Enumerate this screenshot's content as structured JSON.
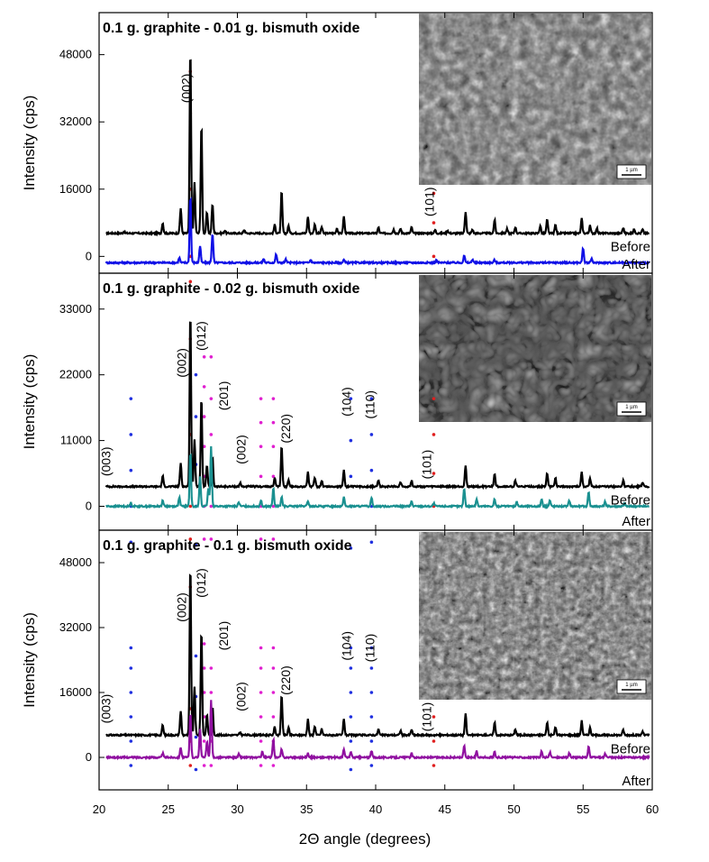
{
  "figure": {
    "xlabel": "2Θ angle (degrees)",
    "x_ticks": [
      "20",
      "25",
      "30",
      "35",
      "40",
      "45",
      "50",
      "55",
      "60"
    ],
    "sem_scale_label": "1 µm",
    "colors": {
      "before": "#000000",
      "after_1": "#1010e6",
      "after_2": "#1a9090",
      "after_3": "#9010a0",
      "marker_red": "#e02020",
      "marker_blue": "#2030e0",
      "marker_pink": "#e020d0"
    }
  },
  "chart_data": [
    {
      "type": "line",
      "title": "0.1 g. graphite - 0.01 g. bismuth oxide",
      "xlabel": "2Θ angle (degrees)",
      "ylabel": "Intensity (cps)",
      "xlim": [
        20,
        60
      ],
      "ylim": [
        -4000,
        58000
      ],
      "yticks": [
        0,
        16000,
        32000,
        48000
      ],
      "ytick_labels": [
        "0",
        "16000",
        "32000",
        "48000"
      ],
      "series": [
        {
          "name": "Before",
          "baseline": 5500,
          "peaks": [
            [
              21.8,
              400
            ],
            [
              24.6,
              2500
            ],
            [
              25.9,
              6000
            ],
            [
              26.6,
              44000
            ],
            [
              26.9,
              12000
            ],
            [
              27.4,
              26000
            ],
            [
              27.8,
              5000
            ],
            [
              28.2,
              7000
            ],
            [
              29.1,
              700
            ],
            [
              30.5,
              800
            ],
            [
              32.7,
              2000
            ],
            [
              33.2,
              10000
            ],
            [
              33.7,
              1800
            ],
            [
              35.1,
              4000
            ],
            [
              35.6,
              2200
            ],
            [
              36.1,
              1500
            ],
            [
              37.2,
              1200
            ],
            [
              37.7,
              4000
            ],
            [
              40.2,
              1400
            ],
            [
              41.3,
              900
            ],
            [
              41.8,
              1100
            ],
            [
              42.6,
              1400
            ],
            [
              44.3,
              800
            ],
            [
              45.2,
              700
            ],
            [
              46.5,
              5200
            ],
            [
              47.0,
              900
            ],
            [
              48.6,
              3200
            ],
            [
              49.5,
              1000
            ],
            [
              50.1,
              1500
            ],
            [
              51.9,
              1800
            ],
            [
              52.4,
              3200
            ],
            [
              53.0,
              2000
            ],
            [
              54.9,
              3500
            ],
            [
              55.5,
              1800
            ],
            [
              56.0,
              1200
            ],
            [
              57.9,
              1300
            ],
            [
              58.7,
              1000
            ],
            [
              59.3,
              900
            ]
          ]
        },
        {
          "name": "After",
          "baseline": -1500,
          "peaks": [
            [
              25.8,
              1200
            ],
            [
              26.6,
              16000
            ],
            [
              27.3,
              4000
            ],
            [
              28.2,
              7000
            ],
            [
              31.9,
              900
            ],
            [
              32.8,
              2000
            ],
            [
              33.5,
              800
            ],
            [
              35.3,
              700
            ],
            [
              37.7,
              700
            ],
            [
              44.4,
              600
            ],
            [
              46.4,
              1800
            ],
            [
              47.0,
              800
            ],
            [
              48.6,
              700
            ],
            [
              55.0,
              3500
            ],
            [
              55.6,
              900
            ]
          ]
        }
      ],
      "series_labels": [
        "Before",
        "After"
      ],
      "annotations": [
        {
          "text": "(002)",
          "x": 26.6,
          "y": 40000
        },
        {
          "text": "(101)",
          "x": 44.2,
          "y": 13000
        }
      ],
      "marker_columns": [
        {
          "x": 26.6,
          "color": "red",
          "y_values": [
            -6000,
            0,
            8000,
            16000,
            25000,
            34000,
            44000
          ]
        },
        {
          "x": 44.2,
          "color": "red",
          "y_values": [
            -6000,
            0,
            8000,
            15000
          ]
        }
      ]
    },
    {
      "type": "line",
      "title": "0.1 g. graphite - 0.02 g. bismuth oxide",
      "xlabel": "2Θ angle (degrees)",
      "ylabel": "Intensity (cps)",
      "xlim": [
        20,
        60
      ],
      "ylim": [
        -4000,
        39000
      ],
      "yticks": [
        0,
        11000,
        22000,
        33000
      ],
      "ytick_labels": [
        "0",
        "11000",
        "22000",
        "33000"
      ],
      "series": [
        {
          "name": "Before",
          "baseline": 3300,
          "peaks": [
            [
              24.6,
              1800
            ],
            [
              25.9,
              4000
            ],
            [
              26.6,
              29500
            ],
            [
              26.9,
              8000
            ],
            [
              27.4,
              15000
            ],
            [
              27.8,
              3500
            ],
            [
              28.2,
              5000
            ],
            [
              30.2,
              600
            ],
            [
              32.7,
              1400
            ],
            [
              33.2,
              6800
            ],
            [
              33.7,
              1200
            ],
            [
              35.1,
              2400
            ],
            [
              35.6,
              1500
            ],
            [
              36.1,
              1000
            ],
            [
              37.7,
              2800
            ],
            [
              40.2,
              1000
            ],
            [
              41.8,
              800
            ],
            [
              42.6,
              1000
            ],
            [
              46.5,
              3500
            ],
            [
              48.6,
              2200
            ],
            [
              50.1,
              1000
            ],
            [
              52.4,
              2300
            ],
            [
              53.0,
              1400
            ],
            [
              54.9,
              2500
            ],
            [
              55.5,
              1300
            ],
            [
              57.9,
              1000
            ],
            [
              59.3,
              700
            ]
          ]
        },
        {
          "name": "After",
          "baseline": 0,
          "peaks": [
            [
              22.3,
              600
            ],
            [
              24.6,
              1000
            ],
            [
              25.8,
              1500
            ],
            [
              26.6,
              9000
            ],
            [
              27.3,
              5000
            ],
            [
              27.9,
              3000
            ],
            [
              28.1,
              10000
            ],
            [
              30.1,
              700
            ],
            [
              31.7,
              1000
            ],
            [
              32.6,
              3000
            ],
            [
              33.2,
              1600
            ],
            [
              35.1,
              900
            ],
            [
              37.7,
              1600
            ],
            [
              39.7,
              1500
            ],
            [
              42.6,
              800
            ],
            [
              44.2,
              500
            ],
            [
              46.4,
              3000
            ],
            [
              47.3,
              1200
            ],
            [
              48.6,
              1200
            ],
            [
              50.2,
              700
            ],
            [
              52.0,
              1200
            ],
            [
              52.6,
              1000
            ],
            [
              54.0,
              1000
            ],
            [
              55.4,
              2500
            ],
            [
              56.6,
              800
            ],
            [
              58.0,
              500
            ]
          ]
        }
      ],
      "series_labels": [
        "Before",
        "After"
      ],
      "annotations": [
        {
          "text": "(002)",
          "x": 26.3,
          "y": 24000
        },
        {
          "text": "(012)",
          "x": 27.7,
          "y": 28500
        },
        {
          "text": "(201)",
          "x": 29.3,
          "y": 18500
        },
        {
          "text": "(003)",
          "x": 20.8,
          "y": 7500
        },
        {
          "text": "(002)",
          "x": 30.6,
          "y": 9500
        },
        {
          "text": "(220)",
          "x": 33.8,
          "y": 13000
        },
        {
          "text": "(104)",
          "x": 38.2,
          "y": 17500
        },
        {
          "text": "(110)",
          "x": 39.9,
          "y": 17000
        },
        {
          "text": "(101)",
          "x": 44.0,
          "y": 7000
        }
      ],
      "marker_columns": [
        {
          "x": 22.3,
          "color": "blue",
          "y_values": [
            -6000,
            0,
            6000,
            12000,
            18000
          ]
        },
        {
          "x": 26.6,
          "color": "red",
          "y_values": [
            -5500,
            0,
            5000,
            12000,
            20000,
            28000
          ]
        },
        {
          "x": 27.0,
          "color": "blue",
          "y_values": [
            -6500,
            0,
            7000,
            15000,
            22000
          ]
        },
        {
          "x": 27.6,
          "color": "pink",
          "y_values": [
            -5500,
            0,
            5000,
            10000,
            15000,
            20000,
            25000
          ]
        },
        {
          "x": 28.1,
          "color": "pink",
          "y_values": [
            -5500,
            0,
            6000,
            12000,
            18000,
            25000
          ]
        },
        {
          "x": 31.7,
          "color": "pink",
          "y_values": [
            -5500,
            0,
            5000,
            10000,
            14000,
            18000
          ]
        },
        {
          "x": 32.6,
          "color": "pink",
          "y_values": [
            -5500,
            0,
            5000,
            10000,
            14000,
            18000
          ]
        },
        {
          "x": 38.2,
          "color": "blue",
          "y_values": [
            -7000,
            0,
            5000,
            11000,
            18000
          ]
        },
        {
          "x": 39.7,
          "color": "blue",
          "y_values": [
            -6000,
            0,
            6000,
            12000,
            18000
          ]
        },
        {
          "x": 44.2,
          "color": "red",
          "y_values": [
            -5500,
            0,
            5500,
            12000,
            18000
          ]
        }
      ]
    },
    {
      "type": "line",
      "title": "0.1 g. graphite - 0.1 g. bismuth oxide",
      "xlabel": "2Θ angle (degrees)",
      "ylabel": "Intensity (cps)",
      "xlim": [
        20,
        60
      ],
      "ylim": [
        -8000,
        56000
      ],
      "yticks": [
        0,
        16000,
        32000,
        48000
      ],
      "ytick_labels": [
        "0",
        "16000",
        "32000",
        "48000"
      ],
      "series": [
        {
          "name": "Before",
          "baseline": 5500,
          "peaks": [
            [
              24.6,
              2500
            ],
            [
              25.9,
              6000
            ],
            [
              26.6,
              42000
            ],
            [
              26.9,
              12000
            ],
            [
              27.4,
              26000
            ],
            [
              27.8,
              5000
            ],
            [
              28.2,
              7000
            ],
            [
              30.2,
              700
            ],
            [
              32.7,
              2000
            ],
            [
              33.2,
              10000
            ],
            [
              33.7,
              1800
            ],
            [
              35.1,
              4000
            ],
            [
              35.6,
              2200
            ],
            [
              36.1,
              1500
            ],
            [
              37.7,
              4000
            ],
            [
              40.2,
              1400
            ],
            [
              41.8,
              1100
            ],
            [
              42.6,
              1400
            ],
            [
              46.5,
              5200
            ],
            [
              48.6,
              3200
            ],
            [
              50.1,
              1500
            ],
            [
              52.4,
              3200
            ],
            [
              53.0,
              2000
            ],
            [
              54.9,
              3500
            ],
            [
              55.5,
              1800
            ],
            [
              57.9,
              1300
            ],
            [
              59.3,
              900
            ]
          ]
        },
        {
          "name": "After",
          "baseline": 0,
          "peaks": [
            [
              24.6,
              1000
            ],
            [
              25.9,
              2500
            ],
            [
              26.6,
              11000
            ],
            [
              27.3,
              7000
            ],
            [
              27.8,
              4000
            ],
            [
              28.1,
              14000
            ],
            [
              30.1,
              800
            ],
            [
              31.8,
              1500
            ],
            [
              32.6,
              4500
            ],
            [
              33.2,
              2000
            ],
            [
              35.1,
              1000
            ],
            [
              37.7,
              2000
            ],
            [
              38.2,
              1300
            ],
            [
              39.7,
              1600
            ],
            [
              42.6,
              900
            ],
            [
              46.4,
              3000
            ],
            [
              47.3,
              1500
            ],
            [
              48.6,
              1400
            ],
            [
              52.0,
              1500
            ],
            [
              52.6,
              1200
            ],
            [
              54.0,
              1100
            ],
            [
              55.4,
              2800
            ],
            [
              56.6,
              900
            ]
          ]
        }
      ],
      "series_labels": [
        "Before",
        "After"
      ],
      "annotations": [
        {
          "text": "(002)",
          "x": 26.3,
          "y": 37000
        },
        {
          "text": "(012)",
          "x": 27.7,
          "y": 43000
        },
        {
          "text": "(201)",
          "x": 29.3,
          "y": 30000
        },
        {
          "text": "(003)",
          "x": 20.8,
          "y": 12000
        },
        {
          "text": "(002)",
          "x": 30.6,
          "y": 15000
        },
        {
          "text": "(220)",
          "x": 33.8,
          "y": 19000
        },
        {
          "text": "(104)",
          "x": 38.2,
          "y": 27500
        },
        {
          "text": "(110)",
          "x": 39.9,
          "y": 27000
        },
        {
          "text": "(101)",
          "x": 44.0,
          "y": 10000
        }
      ],
      "marker_columns": [
        {
          "x": 22.3,
          "color": "blue",
          "y_values": [
            -2000,
            4000,
            10000,
            16000,
            22000,
            27000
          ]
        },
        {
          "x": 26.6,
          "color": "red",
          "y_values": [
            -2000,
            4000,
            12000,
            22000,
            32000,
            42000
          ]
        },
        {
          "x": 27.0,
          "color": "blue",
          "y_values": [
            -3000,
            5000,
            15000,
            25000
          ]
        },
        {
          "x": 27.6,
          "color": "pink",
          "y_values": [
            -2000,
            4000,
            10000,
            16000,
            22000,
            28000
          ]
        },
        {
          "x": 28.1,
          "color": "pink",
          "y_values": [
            -2000,
            4000,
            10000,
            16000,
            22000
          ]
        },
        {
          "x": 31.7,
          "color": "pink",
          "y_values": [
            -2000,
            4000,
            10000,
            16000,
            22000,
            27000
          ]
        },
        {
          "x": 32.6,
          "color": "pink",
          "y_values": [
            -2000,
            4000,
            10000,
            16000,
            22000,
            27000
          ]
        },
        {
          "x": 38.2,
          "color": "blue",
          "y_values": [
            -3000,
            4000,
            10000,
            16000,
            22000,
            27000
          ]
        },
        {
          "x": 39.7,
          "color": "blue",
          "y_values": [
            -2000,
            4000,
            10000,
            16000,
            22000,
            27000
          ]
        },
        {
          "x": 44.2,
          "color": "red",
          "y_values": [
            -2000,
            4000,
            10000
          ]
        }
      ]
    }
  ]
}
